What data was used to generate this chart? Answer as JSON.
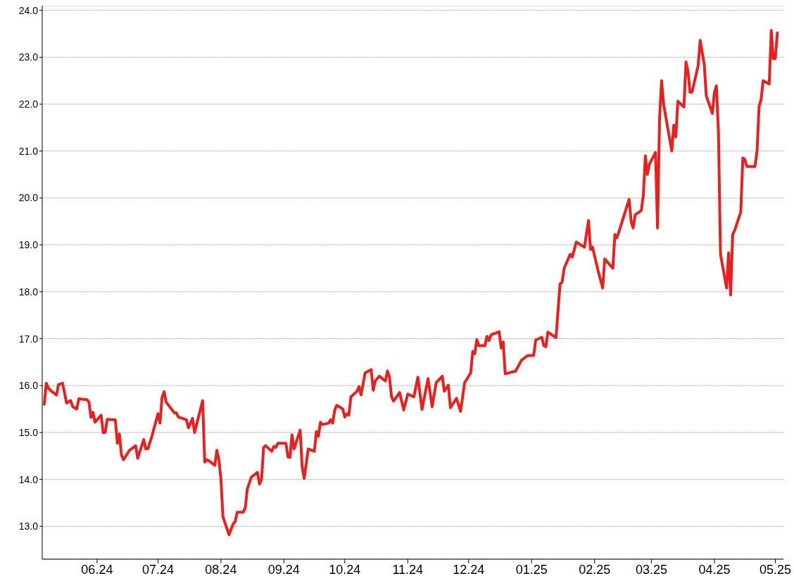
{
  "chart_data": {
    "type": "line",
    "x": [
      "2024-05-06",
      "2024-05-07",
      "2024-05-08",
      "2024-05-09",
      "2024-05-12",
      "2024-05-13",
      "2024-05-15",
      "2024-05-17",
      "2024-05-19",
      "2024-05-20",
      "2024-05-22",
      "2024-05-23",
      "2024-05-27",
      "2024-05-28",
      "2024-05-29",
      "2024-05-30",
      "2024-05-31",
      "2024-06-03",
      "2024-06-04",
      "2024-06-05",
      "2024-06-06",
      "2024-06-10",
      "2024-06-11",
      "2024-06-12",
      "2024-06-13",
      "2024-06-14",
      "2024-06-17",
      "2024-06-20",
      "2024-06-21",
      "2024-06-24",
      "2024-06-25",
      "2024-06-26",
      "2024-06-28",
      "2024-07-01",
      "2024-07-02",
      "2024-07-03",
      "2024-07-04",
      "2024-07-05",
      "2024-07-09",
      "2024-07-10",
      "2024-07-11",
      "2024-07-15",
      "2024-07-16",
      "2024-07-17",
      "2024-07-18",
      "2024-07-19",
      "2024-07-23",
      "2024-07-24",
      "2024-07-25",
      "2024-07-26",
      "2024-07-29",
      "2024-07-30",
      "2024-07-31",
      "2024-08-01",
      "2024-08-02",
      "2024-08-05",
      "2024-08-07",
      "2024-08-08",
      "2024-08-09",
      "2024-08-12",
      "2024-08-13",
      "2024-08-14",
      "2024-08-16",
      "2024-08-19",
      "2024-08-20",
      "2024-08-21",
      "2024-08-22",
      "2024-08-23",
      "2024-08-26",
      "2024-08-27",
      "2024-08-28",
      "2024-08-29",
      "2024-09-02",
      "2024-09-03",
      "2024-09-04",
      "2024-09-05",
      "2024-09-06",
      "2024-09-09",
      "2024-09-10",
      "2024-09-11",
      "2024-09-13",
      "2024-09-16",
      "2024-09-17",
      "2024-09-18",
      "2024-09-19",
      "2024-09-20",
      "2024-09-23",
      "2024-09-24",
      "2024-09-25",
      "2024-09-26",
      "2024-09-27",
      "2024-09-30",
      "2024-10-01",
      "2024-10-02",
      "2024-10-03",
      "2024-10-04",
      "2024-10-07",
      "2024-10-08",
      "2024-10-09",
      "2024-10-10",
      "2024-10-11",
      "2024-10-14",
      "2024-10-15",
      "2024-10-16",
      "2024-10-18",
      "2024-10-21",
      "2024-10-22",
      "2024-10-23",
      "2024-10-24",
      "2024-10-25",
      "2024-10-28",
      "2024-10-30",
      "2024-11-01",
      "2024-11-04",
      "2024-11-06",
      "2024-11-08",
      "2024-11-11",
      "2024-11-13",
      "2024-11-15",
      "2024-11-18",
      "2024-11-19",
      "2024-11-21",
      "2024-11-22",
      "2024-11-25",
      "2024-11-27",
      "2024-11-29",
      "2024-12-02",
      "2024-12-03",
      "2024-12-04",
      "2024-12-05",
      "2024-12-06",
      "2024-12-09",
      "2024-12-10",
      "2024-12-11",
      "2024-12-12",
      "2024-12-16",
      "2024-12-17",
      "2024-12-18",
      "2024-12-19",
      "2024-12-23",
      "2024-12-24",
      "2024-12-27",
      "2024-12-30",
      "2025-01-02",
      "2025-01-03",
      "2025-01-06",
      "2025-01-07",
      "2025-01-08",
      "2025-01-09",
      "2025-01-13",
      "2025-01-15",
      "2025-01-16",
      "2025-01-17",
      "2025-01-20",
      "2025-01-21",
      "2025-01-23",
      "2025-01-27",
      "2025-01-29",
      "2025-01-30",
      "2025-01-31",
      "2025-02-03",
      "2025-02-05",
      "2025-02-06",
      "2025-02-10",
      "2025-02-11",
      "2025-02-12",
      "2025-02-13",
      "2025-02-18",
      "2025-02-19",
      "2025-02-20",
      "2025-02-21",
      "2025-02-24",
      "2025-02-25",
      "2025-02-26",
      "2025-02-27",
      "2025-02-28",
      "2025-03-03",
      "2025-03-04",
      "2025-03-05",
      "2025-03-06",
      "2025-03-07",
      "2025-03-11",
      "2025-03-12",
      "2025-03-13",
      "2025-03-14",
      "2025-03-17",
      "2025-03-18",
      "2025-03-19",
      "2025-03-20",
      "2025-03-21",
      "2025-03-24",
      "2025-03-25",
      "2025-03-27",
      "2025-03-28",
      "2025-03-31",
      "2025-04-01",
      "2025-04-02",
      "2025-04-03",
      "2025-04-04",
      "2025-04-07",
      "2025-04-08",
      "2025-04-09",
      "2025-04-10",
      "2025-04-11",
      "2025-04-14",
      "2025-04-15",
      "2025-04-16",
      "2025-04-17",
      "2025-04-21",
      "2025-04-22",
      "2025-04-23",
      "2025-04-24",
      "2025-04-25",
      "2025-04-28",
      "2025-04-29",
      "2025-04-30",
      "2025-05-01",
      "2025-05-02"
    ],
    "series": [
      {
        "color": "#e8211f",
        "values": [
          15.6,
          16.05,
          15.95,
          15.9,
          15.8,
          16.02,
          16.05,
          15.63,
          15.68,
          15.55,
          15.5,
          15.72,
          15.7,
          15.65,
          15.32,
          15.43,
          15.22,
          15.37,
          15.0,
          15.0,
          15.28,
          15.27,
          14.77,
          14.97,
          14.52,
          14.42,
          14.62,
          14.72,
          14.45,
          14.85,
          14.65,
          14.65,
          14.92,
          15.4,
          15.2,
          15.75,
          15.87,
          15.65,
          15.42,
          15.42,
          15.33,
          15.27,
          15.1,
          15.2,
          15.3,
          15.0,
          15.68,
          14.37,
          14.42,
          14.4,
          14.3,
          14.62,
          14.42,
          14.0,
          13.2,
          12.82,
          13.05,
          13.1,
          13.3,
          13.3,
          13.4,
          13.8,
          14.05,
          14.15,
          13.9,
          14.0,
          14.68,
          14.72,
          14.6,
          14.7,
          14.68,
          14.77,
          14.77,
          14.48,
          14.47,
          14.95,
          14.65,
          15.05,
          14.27,
          14.02,
          14.65,
          14.6,
          15.02,
          14.92,
          15.22,
          15.17,
          15.2,
          15.27,
          15.2,
          15.47,
          15.58,
          15.5,
          15.33,
          15.4,
          15.37,
          15.76,
          15.88,
          15.98,
          15.8,
          16.03,
          16.27,
          16.34,
          15.9,
          16.1,
          16.2,
          16.1,
          16.31,
          16.18,
          15.76,
          15.67,
          15.85,
          15.48,
          15.82,
          15.76,
          16.18,
          15.49,
          16.15,
          15.55,
          16.06,
          16.2,
          15.88,
          16.01,
          15.53,
          15.73,
          15.45,
          16.06,
          16.27,
          16.73,
          16.68,
          16.98,
          16.85,
          16.85,
          17.05,
          16.96,
          17.08,
          17.15,
          16.8,
          16.93,
          16.25,
          16.3,
          16.3,
          16.54,
          16.64,
          16.64,
          16.97,
          17.03,
          16.85,
          16.83,
          17.14,
          17.02,
          18.17,
          18.2,
          18.5,
          18.8,
          18.74,
          19.06,
          18.95,
          19.52,
          18.9,
          18.95,
          18.4,
          18.08,
          18.7,
          18.5,
          19.22,
          19.15,
          19.28,
          19.97,
          19.5,
          19.36,
          19.64,
          19.73,
          20.05,
          20.9,
          20.5,
          20.72,
          20.97,
          19.36,
          21.7,
          22.5,
          22.0,
          21.0,
          21.55,
          21.3,
          22.06,
          21.94,
          22.9,
          22.7,
          22.25,
          22.26,
          22.82,
          23.36,
          22.85,
          22.18,
          21.8,
          22.25,
          22.39,
          21.4,
          18.8,
          18.08,
          18.83,
          17.93,
          19.22,
          19.31,
          19.7,
          20.85,
          20.82,
          20.67,
          20.67,
          21.0,
          21.95,
          22.1,
          22.5,
          22.43,
          23.57,
          22.97,
          22.97,
          23.52
        ]
      }
    ],
    "xlim": [
      "2024-05-05",
      "2025-05-05"
    ],
    "xticks": [
      {
        "value": "2024-06-01",
        "label": "06.24"
      },
      {
        "value": "2024-07-01",
        "label": "07.24"
      },
      {
        "value": "2024-08-01",
        "label": "08.24"
      },
      {
        "value": "2024-09-01",
        "label": "09.24"
      },
      {
        "value": "2024-10-01",
        "label": "10.24"
      },
      {
        "value": "2024-11-01",
        "label": "11.24"
      },
      {
        "value": "2024-12-01",
        "label": "12.24"
      },
      {
        "value": "2025-01-01",
        "label": "01.25"
      },
      {
        "value": "2025-02-01",
        "label": "02.25"
      },
      {
        "value": "2025-03-01",
        "label": "03.25"
      },
      {
        "value": "2025-04-01",
        "label": "04.25"
      },
      {
        "value": "2025-05-01",
        "label": "05.25"
      }
    ],
    "ylim": [
      12.3,
      24.1
    ],
    "yticks": [
      {
        "value": 13,
        "label": "13.0"
      },
      {
        "value": 14,
        "label": "14.0"
      },
      {
        "value": 15,
        "label": "15.0"
      },
      {
        "value": 16,
        "label": "16.0"
      },
      {
        "value": 17,
        "label": "17.0"
      },
      {
        "value": 18,
        "label": "18.0"
      },
      {
        "value": 19,
        "label": "19.0"
      },
      {
        "value": 20,
        "label": "20.0"
      },
      {
        "value": 21,
        "label": "21.0"
      },
      {
        "value": 22,
        "label": "22.0"
      },
      {
        "value": 23,
        "label": "23.0"
      },
      {
        "value": 24,
        "label": "24.0"
      }
    ],
    "grid": "y",
    "line_style": "solid"
  }
}
